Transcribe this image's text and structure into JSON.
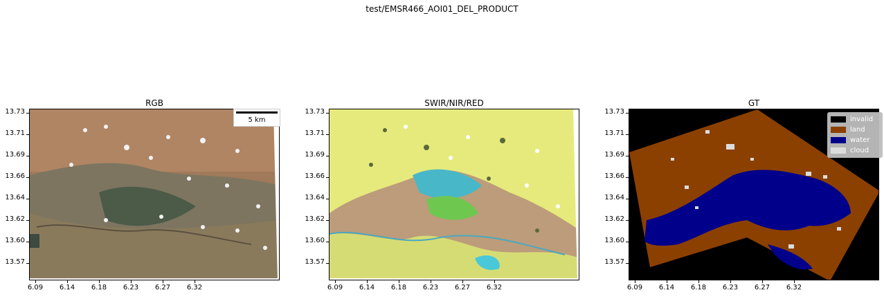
{
  "suptitle": "test/EMSR466_AOI01_DEL_PRODUCT",
  "panels": [
    {
      "title": "RGB"
    },
    {
      "title": "SWIR/NIR/RED"
    },
    {
      "title": "GT"
    }
  ],
  "y_ticks": [
    "13.73",
    "13.71",
    "13.69",
    "13.66",
    "13.64",
    "13.62",
    "13.60",
    "13.57"
  ],
  "x_ticks": [
    "6.09",
    "6.14",
    "6.18",
    "6.23",
    "6.27",
    "6.32"
  ],
  "scalebar": {
    "label": "5 km"
  },
  "legend": {
    "items": [
      {
        "label": "invalid",
        "color": "#000000"
      },
      {
        "label": "land",
        "color": "#8b4000"
      },
      {
        "label": "water",
        "color": "#00008b"
      },
      {
        "label": "cloud",
        "color": "#dcdcdc"
      }
    ]
  },
  "colors": {
    "rgb_land": "#9c7a5c",
    "swir_land": "#e8ec7a",
    "gt_land": "#8b4000",
    "gt_water": "#00008b",
    "gt_invalid": "#000000",
    "gt_cloud": "#dcdcdc"
  }
}
